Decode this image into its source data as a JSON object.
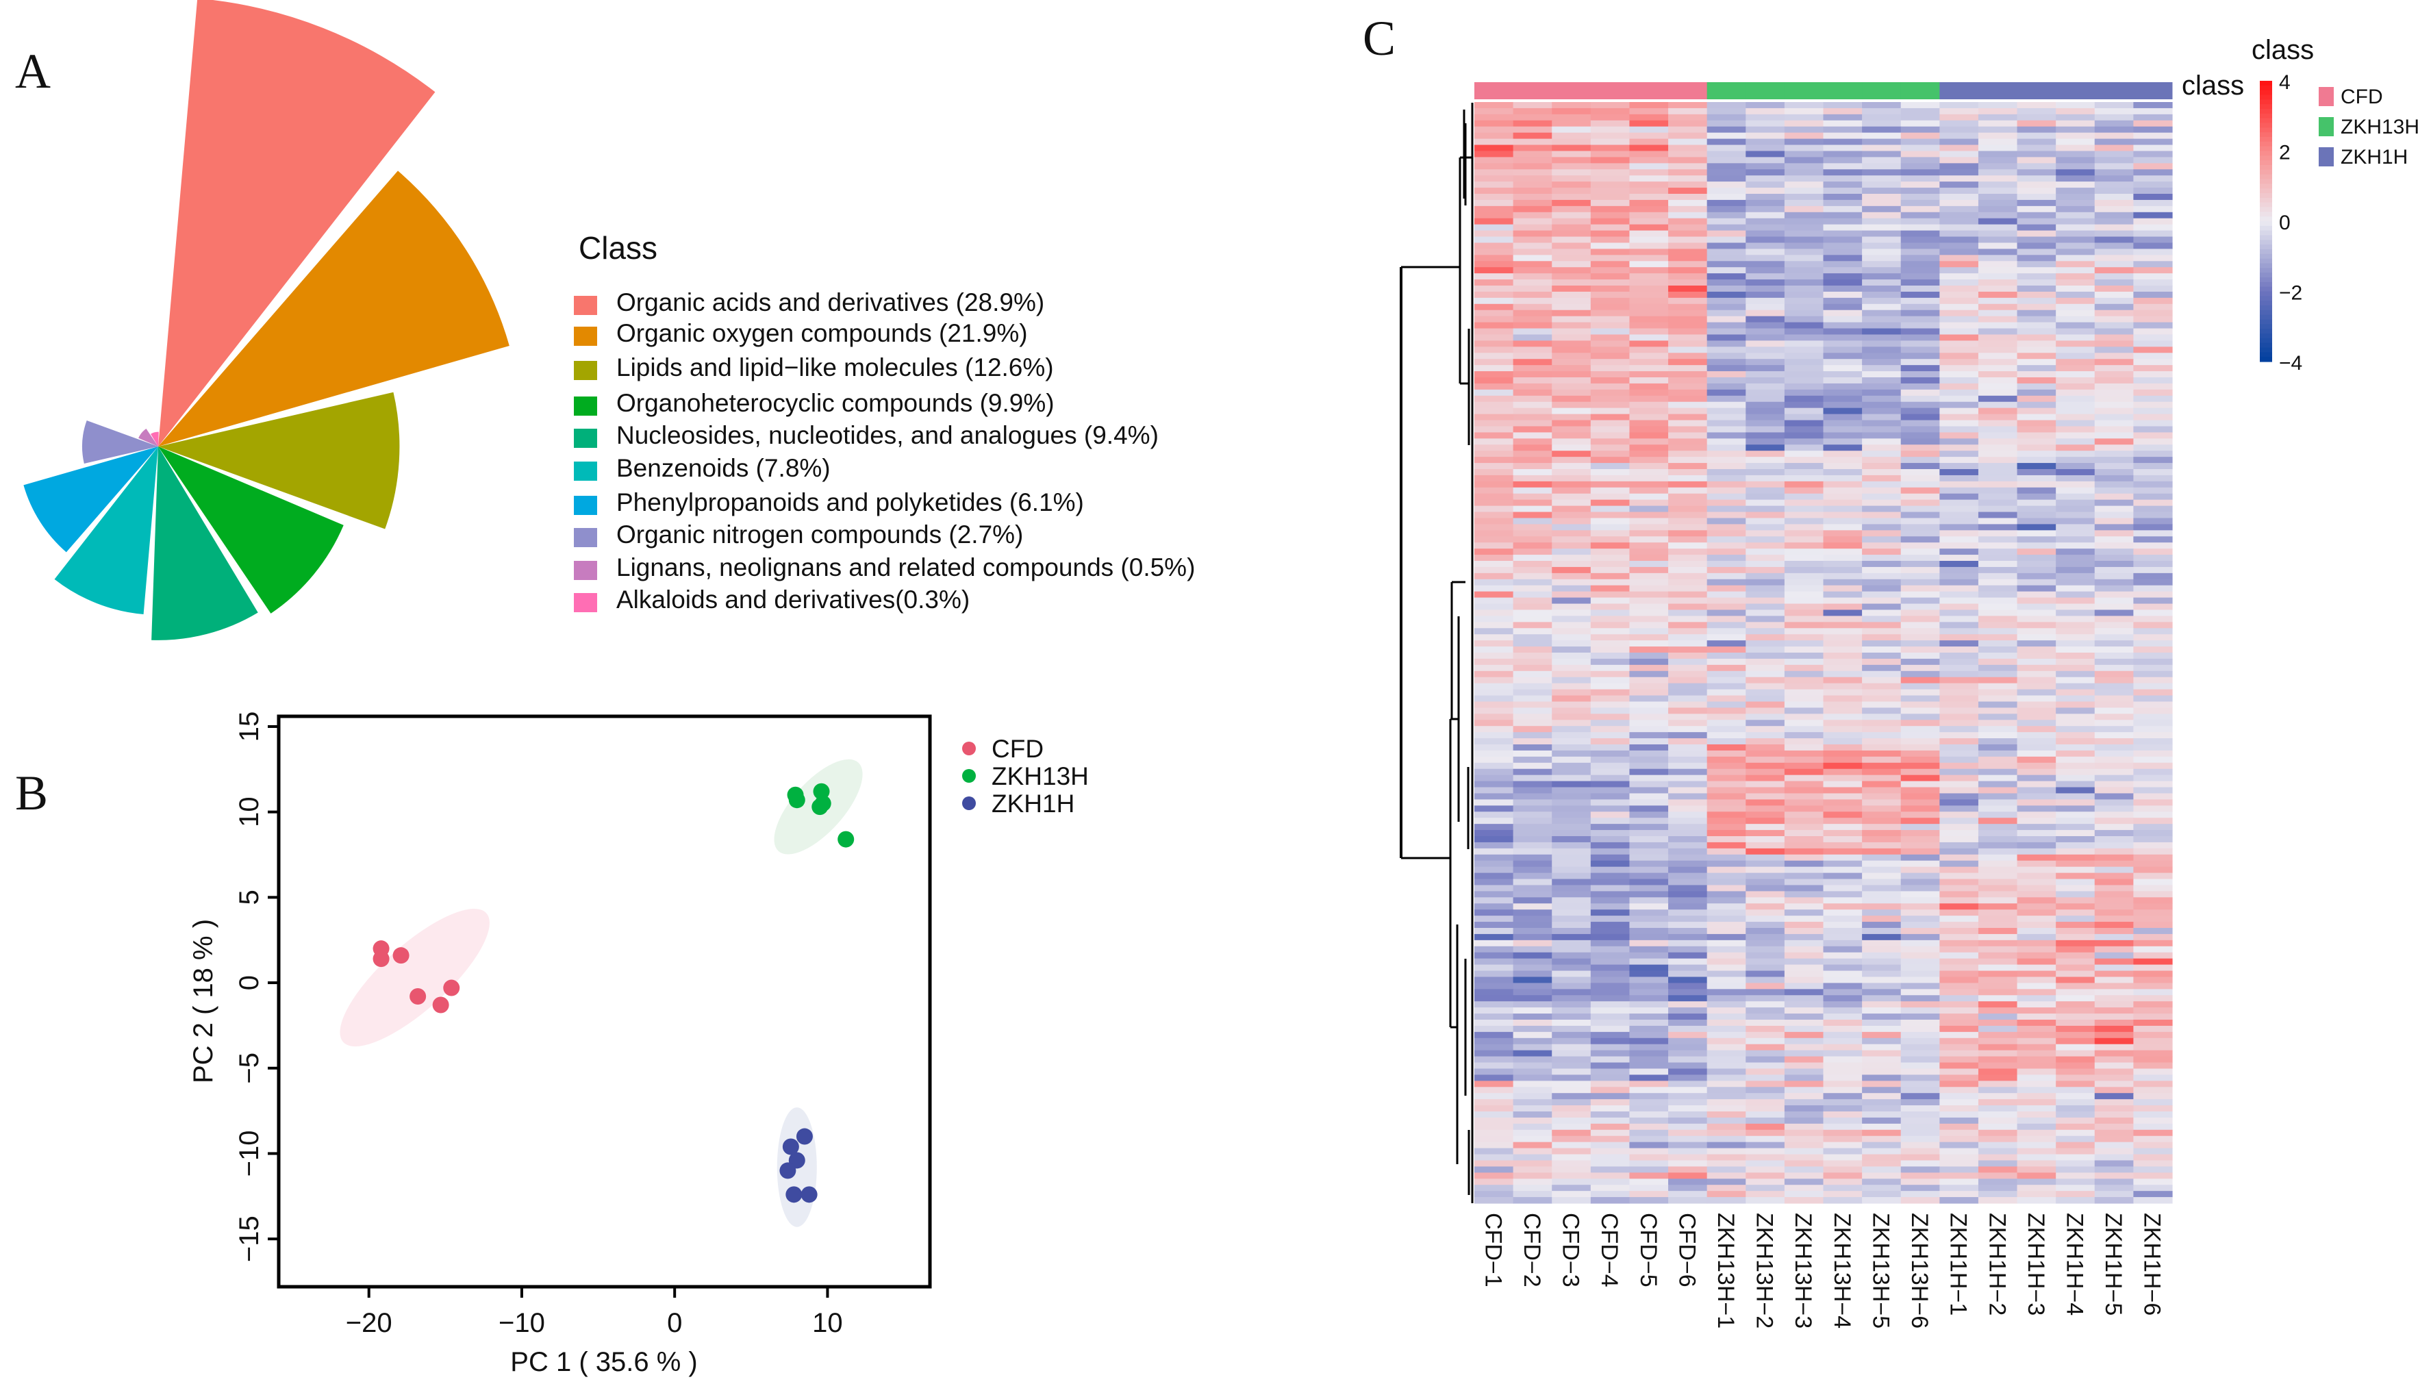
{
  "panels": {
    "a": "A",
    "b": "B",
    "c": "C"
  },
  "chart_data": [
    {
      "type": "rose",
      "legend_title": "Class",
      "legend_placement": "right",
      "categories": [
        {
          "label": "Organic acids and derivatives (28.9%)",
          "value": 28.9,
          "color": "#f8766d"
        },
        {
          "label": "Organic oxygen compounds (21.9%)",
          "value": 21.9,
          "color": "#e38900"
        },
        {
          "label": "Lipids and lipid−like molecules (12.6%)",
          "value": 12.6,
          "color": "#a3a500"
        },
        {
          "label": "Organoheterocyclic compounds (9.9%)",
          "value": 9.9,
          "color": "#00ac1f"
        },
        {
          "label": "Nucleosides, nucleotides, and analogues (9.4%)",
          "value": 9.4,
          "color": "#00b07a"
        },
        {
          "label": "Benzenoids (7.8%)",
          "value": 7.8,
          "color": "#00bab8"
        },
        {
          "label": "Phenylpropanoids and polyketides (6.1%)",
          "value": 6.1,
          "color": "#00a8e0"
        },
        {
          "label": "Organic nitrogen compounds (2.7%)",
          "value": 2.7,
          "color": "#8f8fcc"
        },
        {
          "label": "Lignans, neolignans and related compounds (0.5%)",
          "value": 0.5,
          "color": "#c77cbf"
        },
        {
          "label": "Alkaloids and derivatives(0.3%)",
          "value": 0.3,
          "color": "#ff6eb4"
        }
      ]
    },
    {
      "type": "scatter",
      "xlabel": "PC 1 ( 35.6 % )",
      "ylabel": "PC 2 ( 18 % )",
      "xlim": [
        -25.9,
        16.7
      ],
      "ylim": [
        -17.8,
        15.6
      ],
      "xticks": [
        {
          "v": -20,
          "label": "−20"
        },
        {
          "v": -10,
          "label": "−10"
        },
        {
          "v": 0,
          "label": "0"
        },
        {
          "v": 10,
          "label": "10"
        }
      ],
      "yticks": [
        {
          "v": 15,
          "label": "15"
        },
        {
          "v": 10,
          "label": "10"
        },
        {
          "v": 5,
          "label": "5"
        },
        {
          "v": 0,
          "label": "0"
        },
        {
          "v": -5,
          "label": "−5"
        },
        {
          "v": -10,
          "label": "−10"
        },
        {
          "v": -15,
          "label": "−15"
        }
      ],
      "legend_placement": "right",
      "series": [
        {
          "name": "CFD",
          "color": "#e8566f",
          "ellipse_fill": "#fde9ee",
          "ellipse": {
            "cx": -17,
            "cy": 0.3,
            "rx": 6.3,
            "ry": 1.9,
            "angle_deg": -42
          },
          "points": [
            [
              -19.2,
              2.0
            ],
            [
              -19.2,
              1.4
            ],
            [
              -17.9,
              1.6
            ],
            [
              -16.8,
              -0.8
            ],
            [
              -15.3,
              -1.3
            ],
            [
              -14.6,
              -0.3
            ]
          ]
        },
        {
          "name": "ZKH13H",
          "color": "#00b140",
          "ellipse_fill": "#e8f4ea",
          "ellipse": {
            "cx": 9.4,
            "cy": 10.3,
            "rx": 3.9,
            "ry": 1.5,
            "angle_deg": -48
          },
          "points": [
            [
              7.9,
              11.0
            ],
            [
              8.0,
              10.7
            ],
            [
              9.6,
              11.2
            ],
            [
              9.5,
              10.3
            ],
            [
              9.7,
              10.5
            ],
            [
              11.2,
              8.4
            ]
          ]
        },
        {
          "name": "ZKH1H",
          "color": "#3f4ba0",
          "ellipse_fill": "#e9ecf4",
          "ellipse": {
            "cx": 8.0,
            "cy": -10.8,
            "rx": 1.3,
            "ry": 3.5,
            "angle_deg": 0
          },
          "points": [
            [
              8.5,
              -9.0
            ],
            [
              7.6,
              -9.6
            ],
            [
              8.0,
              -10.4
            ],
            [
              7.4,
              -11.0
            ],
            [
              7.8,
              -12.4
            ],
            [
              8.8,
              -12.4
            ]
          ]
        }
      ]
    },
    {
      "type": "heatmap",
      "annotation_label": "class",
      "colorbar_title": "class",
      "color_range": [
        -4,
        4
      ],
      "colorbar_ticks": [
        {
          "v": 4,
          "label": "4"
        },
        {
          "v": 2,
          "label": "2"
        },
        {
          "v": 0,
          "label": "0"
        },
        {
          "v": -2,
          "label": "−2"
        },
        {
          "v": -4,
          "label": "−4"
        }
      ],
      "color_stops": [
        [
          -4,
          "#003f9e"
        ],
        [
          -2,
          "#6e74be"
        ],
        [
          0,
          "#ecebf2"
        ],
        [
          2,
          "#f98a8a"
        ],
        [
          4,
          "#ff1010"
        ]
      ],
      "groups": [
        {
          "name": "CFD",
          "color": "#f07a92"
        },
        {
          "name": "ZKH13H",
          "color": "#45c36a"
        },
        {
          "name": "ZKH1H",
          "color": "#6b74b8"
        }
      ],
      "columns": [
        {
          "label": "CFD−1",
          "group": 0
        },
        {
          "label": "CFD−2",
          "group": 0
        },
        {
          "label": "CFD−3",
          "group": 0
        },
        {
          "label": "CFD−4",
          "group": 0
        },
        {
          "label": "CFD−5",
          "group": 0
        },
        {
          "label": "CFD−6",
          "group": 0
        },
        {
          "label": "ZKH13H−1",
          "group": 1
        },
        {
          "label": "ZKH13H−2",
          "group": 1
        },
        {
          "label": "ZKH13H−3",
          "group": 1
        },
        {
          "label": "ZKH13H−4",
          "group": 1
        },
        {
          "label": "ZKH13H−5",
          "group": 1
        },
        {
          "label": "ZKH13H−6",
          "group": 1
        },
        {
          "label": "ZKH1H−1",
          "group": 2
        },
        {
          "label": "ZKH1H−2",
          "group": 2
        },
        {
          "label": "ZKH1H−3",
          "group": 2
        },
        {
          "label": "ZKH1H−4",
          "group": 2
        },
        {
          "label": "ZKH1H−5",
          "group": 2
        },
        {
          "label": "ZKH1H−6",
          "group": 2
        }
      ],
      "row_blocks": [
        {
          "rows": 25,
          "group_means": [
            1.2,
            -0.7,
            -0.6
          ]
        },
        {
          "rows": 32,
          "group_means": [
            1.1,
            -1.0,
            0.2
          ]
        },
        {
          "rows": 24,
          "group_means": [
            0.9,
            0.1,
            -0.5
          ]
        },
        {
          "rows": 24,
          "group_means": [
            0.2,
            0.0,
            0.0
          ]
        },
        {
          "rows": 18,
          "group_means": [
            -0.7,
            1.3,
            -0.2
          ]
        },
        {
          "rows": 37,
          "group_means": [
            -1.0,
            -0.1,
            1.0
          ]
        },
        {
          "rows": 20,
          "group_means": [
            0.0,
            0.0,
            0.1
          ]
        }
      ],
      "noise_sd": 0.6
    }
  ]
}
